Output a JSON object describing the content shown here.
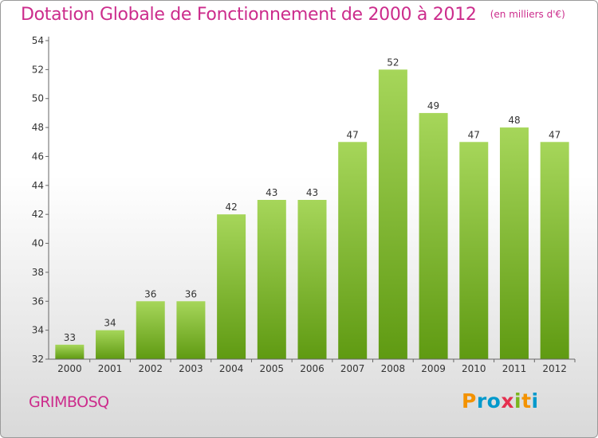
{
  "title": "Dotation Globale de Fonctionnement de 2000 à 2012",
  "subtitle": "(en milliers d'€)",
  "commune": "GRIMBOSQ",
  "logo": {
    "letters": [
      "P",
      "r",
      "o",
      "x",
      "i",
      "t",
      "i"
    ],
    "colors": [
      "#f39200",
      "#0099cc",
      "#0099cc",
      "#e5304f",
      "#7ab51d",
      "#f39200",
      "#0099cc"
    ]
  },
  "colors": {
    "title": "#cc2c8c",
    "bar_light": "#a6d65a",
    "bar_dark": "#5f9a12"
  },
  "chart_data": {
    "type": "bar",
    "categories": [
      "2000",
      "2001",
      "2002",
      "2003",
      "2004",
      "2005",
      "2006",
      "2007",
      "2008",
      "2009",
      "2010",
      "2011",
      "2012"
    ],
    "values": [
      33,
      34,
      36,
      36,
      42,
      43,
      43,
      47,
      52,
      49,
      47,
      48,
      47
    ],
    "ylim": [
      32,
      54
    ],
    "yticks": [
      32,
      34,
      36,
      38,
      40,
      42,
      44,
      46,
      48,
      50,
      52,
      54
    ],
    "grid": false,
    "xlabel": "",
    "ylabel": ""
  }
}
